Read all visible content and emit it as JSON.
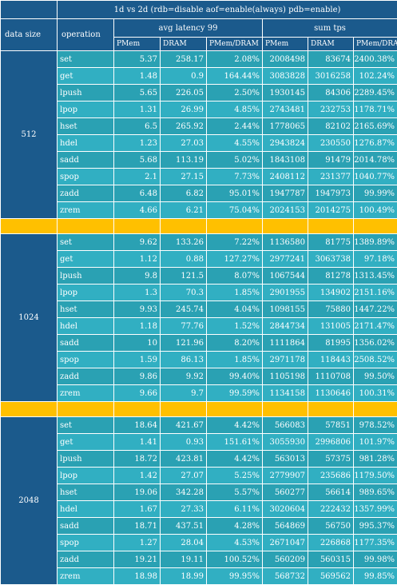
{
  "header": {
    "title": "1d vs 2d (rdb=disable aof=enable(always) pdb=enable)",
    "data_size_label": "data size",
    "operation_label": "operation",
    "latency_group": "avg latency 99",
    "tps_group": "sum tps",
    "latency_cols": [
      "PMem",
      "DRAM",
      "PMem/DRAM"
    ],
    "tps_cols": [
      "PMem",
      "DRAM",
      "PMem/DRAM"
    ]
  },
  "groups": [
    {
      "size": "512",
      "rows": [
        {
          "op": "set",
          "lat_pmem": "5.37",
          "lat_dram": "258.17",
          "lat_ratio": "2.08%",
          "tps_pmem": "2008498",
          "tps_dram": "83674",
          "tps_ratio": "2400.38%"
        },
        {
          "op": "get",
          "lat_pmem": "1.48",
          "lat_dram": "0.9",
          "lat_ratio": "164.44%",
          "tps_pmem": "3083828",
          "tps_dram": "3016258",
          "tps_ratio": "102.24%"
        },
        {
          "op": "lpush",
          "lat_pmem": "5.65",
          "lat_dram": "226.05",
          "lat_ratio": "2.50%",
          "tps_pmem": "1930145",
          "tps_dram": "84306",
          "tps_ratio": "2289.45%"
        },
        {
          "op": "lpop",
          "lat_pmem": "1.31",
          "lat_dram": "26.99",
          "lat_ratio": "4.85%",
          "tps_pmem": "2743481",
          "tps_dram": "232753",
          "tps_ratio": "1178.71%"
        },
        {
          "op": "hset",
          "lat_pmem": "6.5",
          "lat_dram": "265.92",
          "lat_ratio": "2.44%",
          "tps_pmem": "1778065",
          "tps_dram": "82102",
          "tps_ratio": "2165.69%"
        },
        {
          "op": "hdel",
          "lat_pmem": "1.23",
          "lat_dram": "27.03",
          "lat_ratio": "4.55%",
          "tps_pmem": "2943824",
          "tps_dram": "230550",
          "tps_ratio": "1276.87%"
        },
        {
          "op": "sadd",
          "lat_pmem": "5.68",
          "lat_dram": "113.19",
          "lat_ratio": "5.02%",
          "tps_pmem": "1843108",
          "tps_dram": "91479",
          "tps_ratio": "2014.78%"
        },
        {
          "op": "spop",
          "lat_pmem": "2.1",
          "lat_dram": "27.15",
          "lat_ratio": "7.73%",
          "tps_pmem": "2408112",
          "tps_dram": "231377",
          "tps_ratio": "1040.77%"
        },
        {
          "op": "zadd",
          "lat_pmem": "6.48",
          "lat_dram": "6.82",
          "lat_ratio": "95.01%",
          "tps_pmem": "1947787",
          "tps_dram": "1947973",
          "tps_ratio": "99.99%"
        },
        {
          "op": "zrem",
          "lat_pmem": "4.66",
          "lat_dram": "6.21",
          "lat_ratio": "75.04%",
          "tps_pmem": "2024153",
          "tps_dram": "2014275",
          "tps_ratio": "100.49%"
        }
      ]
    },
    {
      "size": "1024",
      "rows": [
        {
          "op": "set",
          "lat_pmem": "9.62",
          "lat_dram": "133.26",
          "lat_ratio": "7.22%",
          "tps_pmem": "1136580",
          "tps_dram": "81775",
          "tps_ratio": "1389.89%"
        },
        {
          "op": "get",
          "lat_pmem": "1.12",
          "lat_dram": "0.88",
          "lat_ratio": "127.27%",
          "tps_pmem": "2977241",
          "tps_dram": "3063738",
          "tps_ratio": "97.18%"
        },
        {
          "op": "lpush",
          "lat_pmem": "9.8",
          "lat_dram": "121.5",
          "lat_ratio": "8.07%",
          "tps_pmem": "1067544",
          "tps_dram": "81278",
          "tps_ratio": "1313.45%"
        },
        {
          "op": "lpop",
          "lat_pmem": "1.3",
          "lat_dram": "70.3",
          "lat_ratio": "1.85%",
          "tps_pmem": "2901955",
          "tps_dram": "134902",
          "tps_ratio": "2151.16%"
        },
        {
          "op": "hset",
          "lat_pmem": "9.93",
          "lat_dram": "245.74",
          "lat_ratio": "4.04%",
          "tps_pmem": "1098155",
          "tps_dram": "75880",
          "tps_ratio": "1447.22%"
        },
        {
          "op": "hdel",
          "lat_pmem": "1.18",
          "lat_dram": "77.76",
          "lat_ratio": "1.52%",
          "tps_pmem": "2844734",
          "tps_dram": "131005",
          "tps_ratio": "2171.47%"
        },
        {
          "op": "sadd",
          "lat_pmem": "10",
          "lat_dram": "121.96",
          "lat_ratio": "8.20%",
          "tps_pmem": "1111864",
          "tps_dram": "81995",
          "tps_ratio": "1356.02%"
        },
        {
          "op": "spop",
          "lat_pmem": "1.59",
          "lat_dram": "86.13",
          "lat_ratio": "1.85%",
          "tps_pmem": "2971178",
          "tps_dram": "118443",
          "tps_ratio": "2508.52%"
        },
        {
          "op": "zadd",
          "lat_pmem": "9.86",
          "lat_dram": "9.92",
          "lat_ratio": "99.40%",
          "tps_pmem": "1105198",
          "tps_dram": "1110708",
          "tps_ratio": "99.50%"
        },
        {
          "op": "zrem",
          "lat_pmem": "9.66",
          "lat_dram": "9.7",
          "lat_ratio": "99.59%",
          "tps_pmem": "1134158",
          "tps_dram": "1130646",
          "tps_ratio": "100.31%"
        }
      ]
    },
    {
      "size": "2048",
      "rows": [
        {
          "op": "set",
          "lat_pmem": "18.64",
          "lat_dram": "421.67",
          "lat_ratio": "4.42%",
          "tps_pmem": "566083",
          "tps_dram": "57851",
          "tps_ratio": "978.52%"
        },
        {
          "op": "get",
          "lat_pmem": "1.41",
          "lat_dram": "0.93",
          "lat_ratio": "151.61%",
          "tps_pmem": "3055930",
          "tps_dram": "2996806",
          "tps_ratio": "101.97%"
        },
        {
          "op": "lpush",
          "lat_pmem": "18.72",
          "lat_dram": "423.81",
          "lat_ratio": "4.42%",
          "tps_pmem": "563013",
          "tps_dram": "57375",
          "tps_ratio": "981.28%"
        },
        {
          "op": "lpop",
          "lat_pmem": "1.42",
          "lat_dram": "27.07",
          "lat_ratio": "5.25%",
          "tps_pmem": "2779907",
          "tps_dram": "235686",
          "tps_ratio": "1179.50%"
        },
        {
          "op": "hset",
          "lat_pmem": "19.06",
          "lat_dram": "342.28",
          "lat_ratio": "5.57%",
          "tps_pmem": "560277",
          "tps_dram": "56614",
          "tps_ratio": "989.65%"
        },
        {
          "op": "hdel",
          "lat_pmem": "1.67",
          "lat_dram": "27.33",
          "lat_ratio": "6.11%",
          "tps_pmem": "3020604",
          "tps_dram": "222432",
          "tps_ratio": "1357.99%"
        },
        {
          "op": "sadd",
          "lat_pmem": "18.71",
          "lat_dram": "437.51",
          "lat_ratio": "4.28%",
          "tps_pmem": "564869",
          "tps_dram": "56750",
          "tps_ratio": "995.37%"
        },
        {
          "op": "spop",
          "lat_pmem": "1.27",
          "lat_dram": "28.04",
          "lat_ratio": "4.53%",
          "tps_pmem": "2671047",
          "tps_dram": "226868",
          "tps_ratio": "1177.35%"
        },
        {
          "op": "zadd",
          "lat_pmem": "19.21",
          "lat_dram": "19.11",
          "lat_ratio": "100.52%",
          "tps_pmem": "560209",
          "tps_dram": "560315",
          "tps_ratio": "99.98%"
        },
        {
          "op": "zrem",
          "lat_pmem": "18.98",
          "lat_dram": "18.99",
          "lat_ratio": "99.95%",
          "tps_pmem": "568732",
          "tps_dram": "569562",
          "tps_ratio": "99.85%"
        }
      ]
    }
  ]
}
